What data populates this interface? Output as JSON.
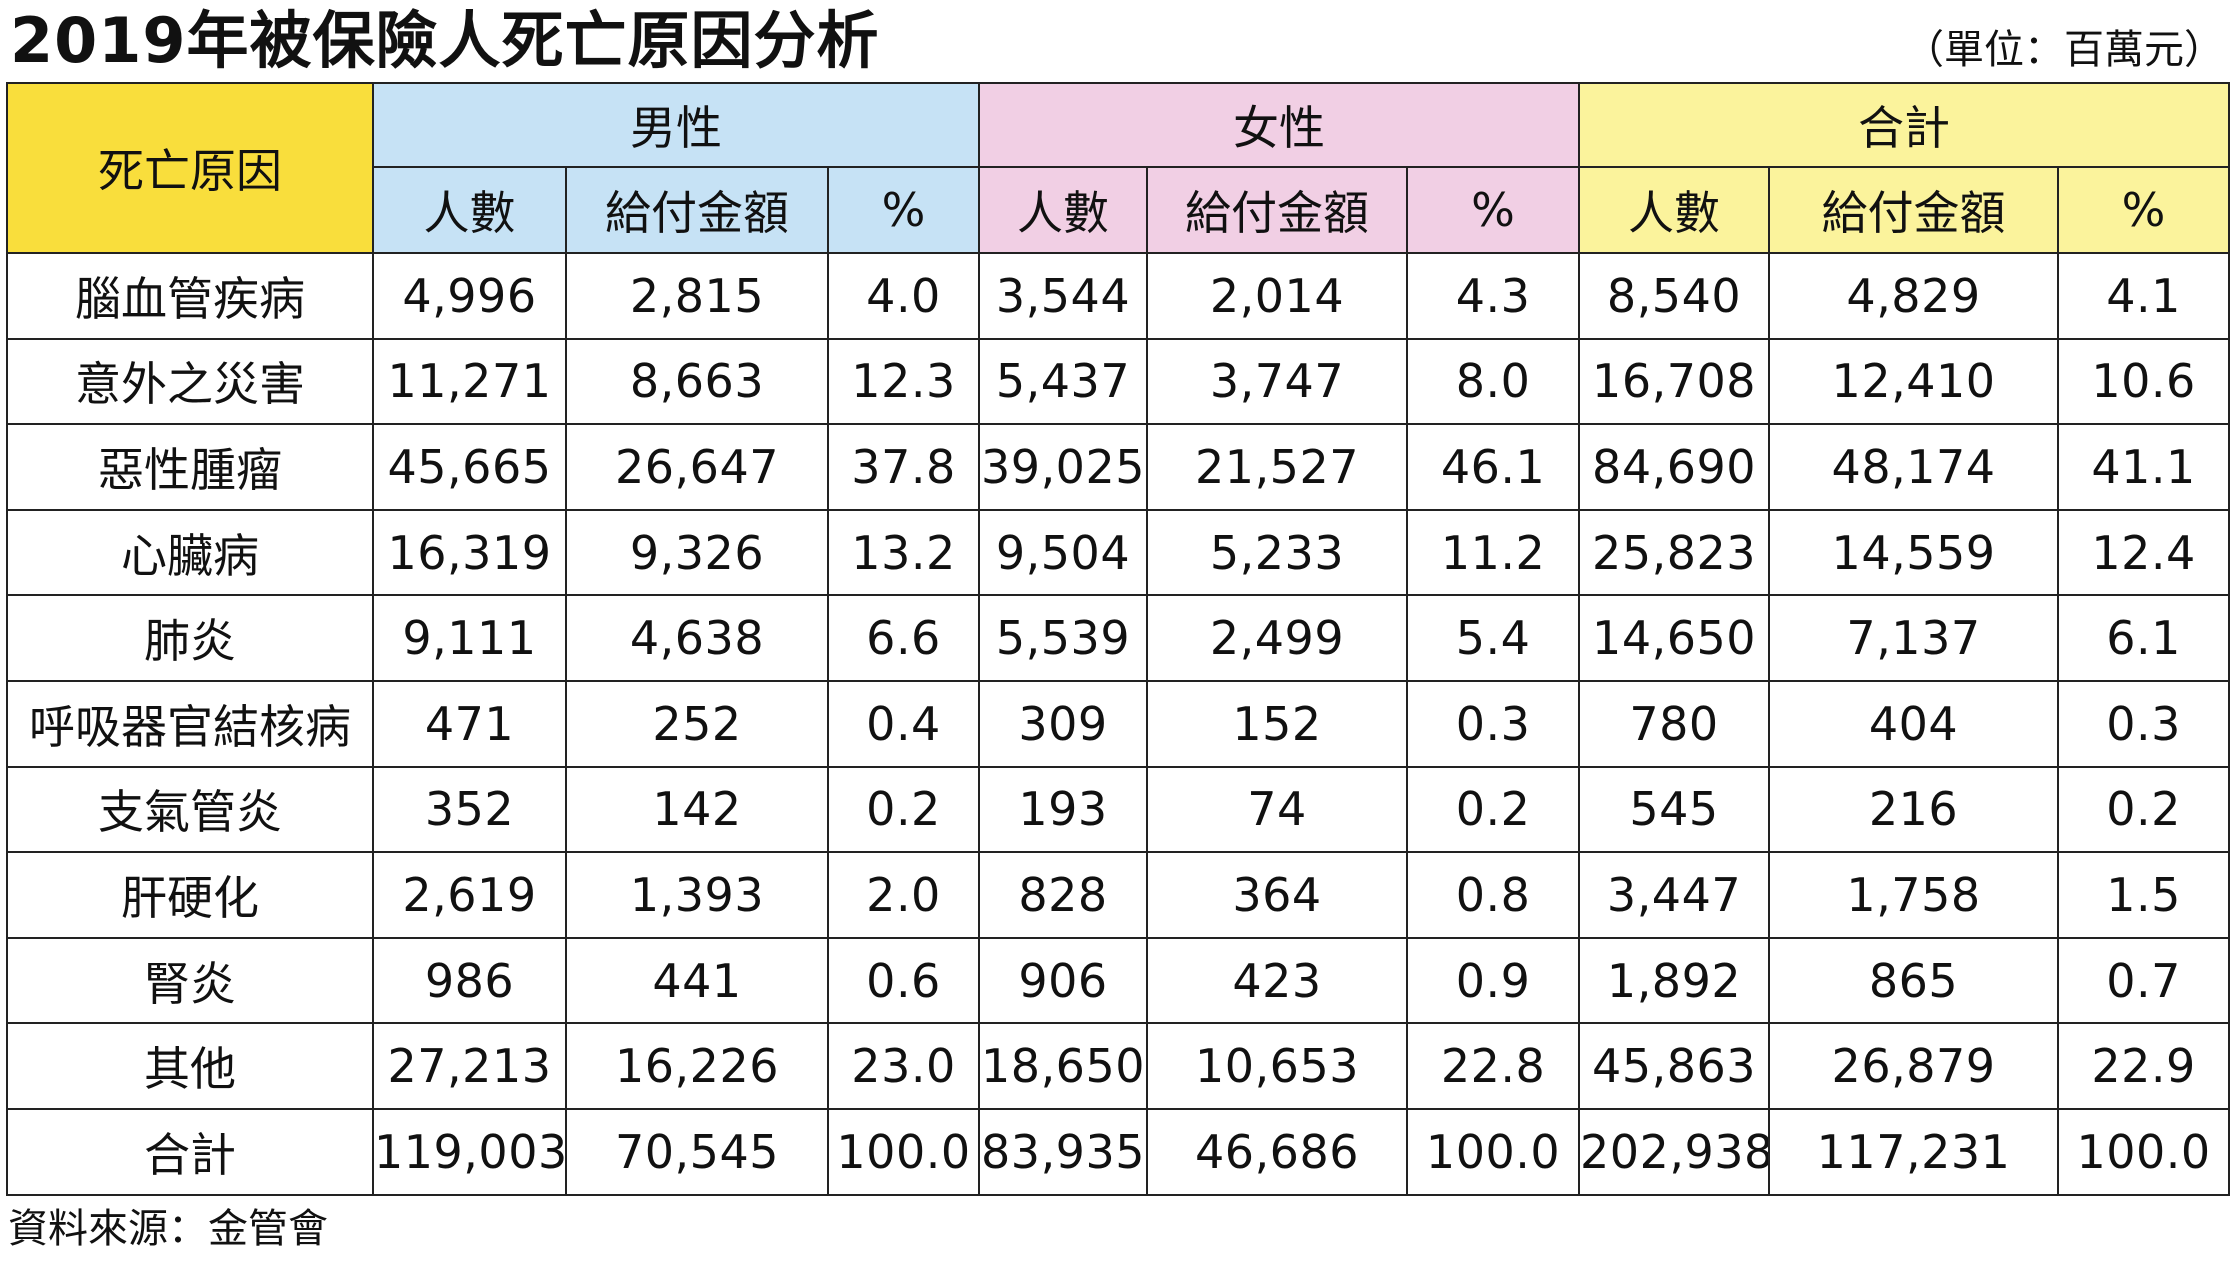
{
  "title": "2019年被保險人死亡原因分析",
  "unit": "（單位：百萬元）",
  "header": {
    "cause": "死亡原因",
    "groups": [
      "男性",
      "女性",
      "合計"
    ],
    "subcolumns": [
      "人數",
      "給付金額",
      "%"
    ]
  },
  "colors": {
    "cause_header": "#f9de3c",
    "male": "#c6e2f5",
    "female": "#f1cfe4",
    "total": "#fbf39c"
  },
  "rows": [
    {
      "cause": "腦血管疾病",
      "values": [
        "4,996",
        "2,815",
        "4.0",
        "3,544",
        "2,014",
        "4.3",
        "8,540",
        "4,829",
        "4.1"
      ]
    },
    {
      "cause": "意外之災害",
      "values": [
        "11,271",
        "8,663",
        "12.3",
        "5,437",
        "3,747",
        "8.0",
        "16,708",
        "12,410",
        "10.6"
      ]
    },
    {
      "cause": "惡性腫瘤",
      "values": [
        "45,665",
        "26,647",
        "37.8",
        "39,025",
        "21,527",
        "46.1",
        "84,690",
        "48,174",
        "41.1"
      ]
    },
    {
      "cause": "心臟病",
      "values": [
        "16,319",
        "9,326",
        "13.2",
        "9,504",
        "5,233",
        "11.2",
        "25,823",
        "14,559",
        "12.4"
      ]
    },
    {
      "cause": "肺炎",
      "values": [
        "9,111",
        "4,638",
        "6.6",
        "5,539",
        "2,499",
        "5.4",
        "14,650",
        "7,137",
        "6.1"
      ]
    },
    {
      "cause": "呼吸器官結核病",
      "values": [
        "471",
        "252",
        "0.4",
        "309",
        "152",
        "0.3",
        "780",
        "404",
        "0.3"
      ]
    },
    {
      "cause": "支氣管炎",
      "values": [
        "352",
        "142",
        "0.2",
        "193",
        "74",
        "0.2",
        "545",
        "216",
        "0.2"
      ]
    },
    {
      "cause": "肝硬化",
      "values": [
        "2,619",
        "1,393",
        "2.0",
        "828",
        "364",
        "0.8",
        "3,447",
        "1,758",
        "1.5"
      ]
    },
    {
      "cause": "腎炎",
      "values": [
        "986",
        "441",
        "0.6",
        "906",
        "423",
        "0.9",
        "1,892",
        "865",
        "0.7"
      ]
    },
    {
      "cause": "其他",
      "values": [
        "27,213",
        "16,226",
        "23.0",
        "18,650",
        "10,653",
        "22.8",
        "45,863",
        "26,879",
        "22.9"
      ]
    },
    {
      "cause": "合計",
      "values": [
        "119,003",
        "70,545",
        "100.0",
        "83,935",
        "46,686",
        "100.0",
        "202,938",
        "117,231",
        "100.0"
      ]
    }
  ],
  "source": "資料來源：金管會"
}
